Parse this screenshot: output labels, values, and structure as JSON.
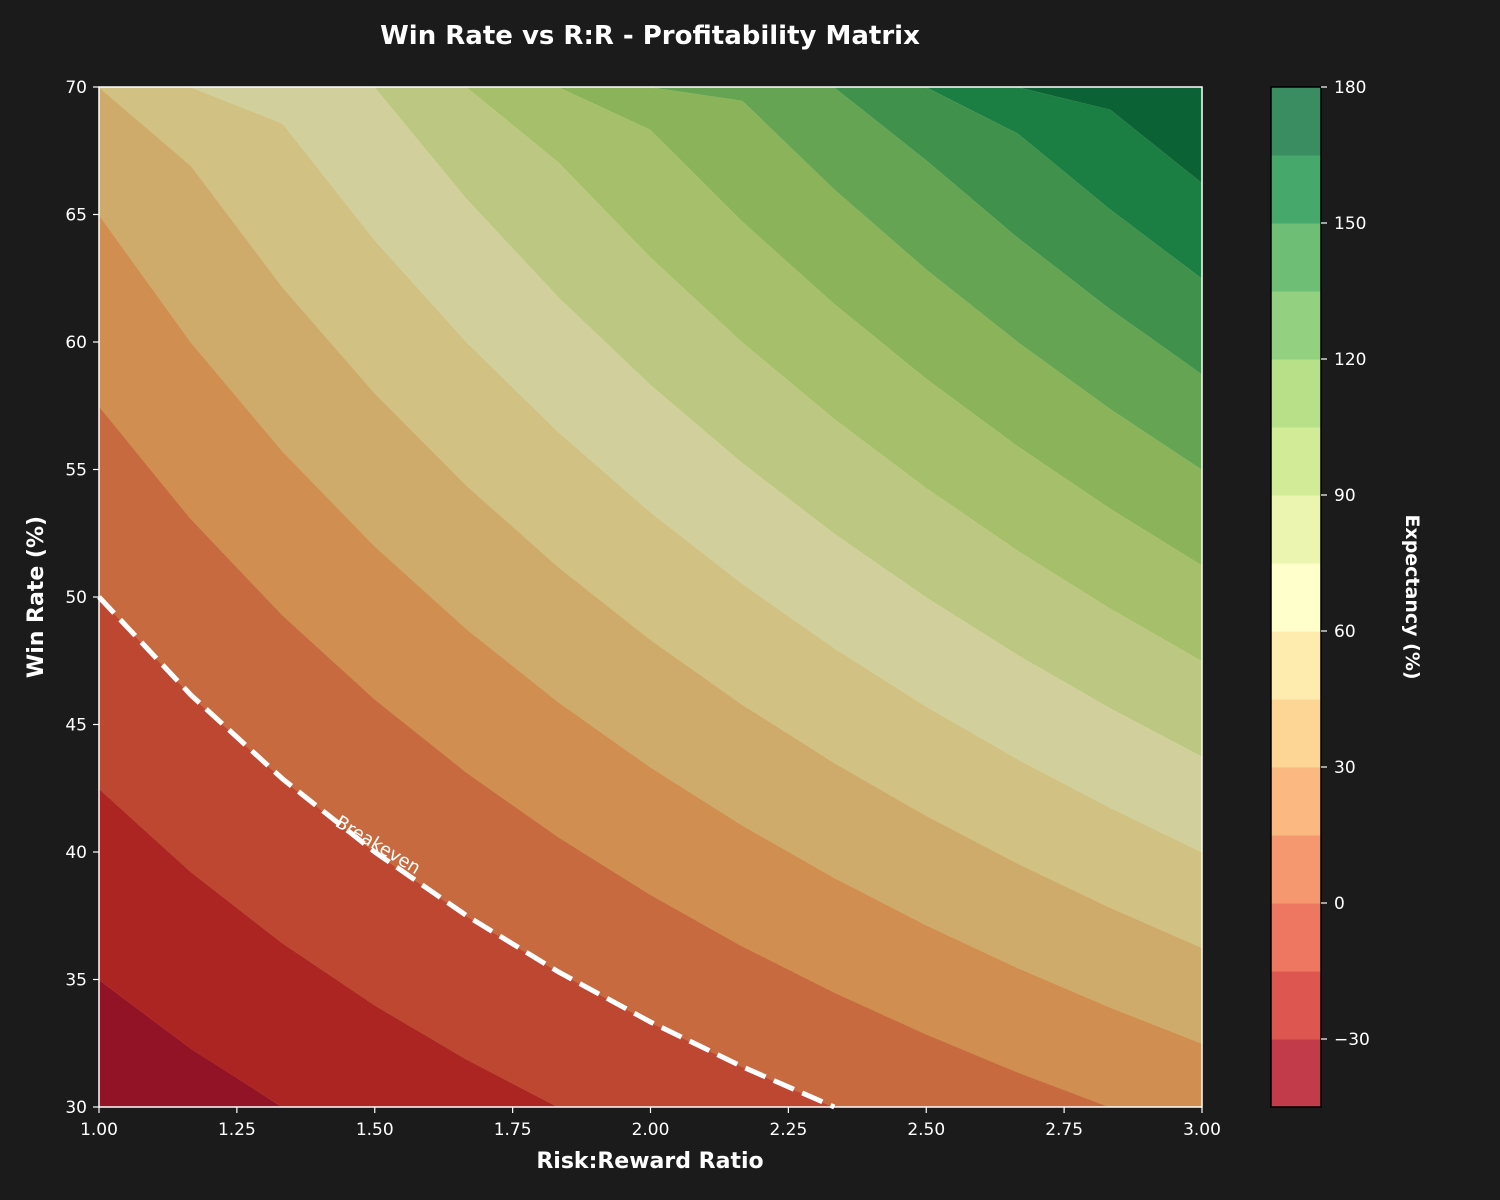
{
  "chart_data": {
    "type": "contour",
    "title": "Win Rate vs R:R - Profitability Matrix",
    "xlabel": "Risk:Reward Ratio",
    "ylabel": "Win Rate (%)",
    "xlim": [
      1.0,
      3.0
    ],
    "ylim": [
      30,
      70
    ],
    "xticks": [
      "1.00",
      "1.25",
      "1.50",
      "1.75",
      "2.00",
      "2.25",
      "2.50",
      "2.75",
      "3.00"
    ],
    "xtick_values": [
      1.0,
      1.25,
      1.5,
      1.75,
      2.0,
      2.25,
      2.5,
      2.75,
      3.0
    ],
    "yticks": [
      "30",
      "35",
      "40",
      "45",
      "50",
      "55",
      "60",
      "65",
      "70"
    ],
    "ytick_values": [
      30,
      35,
      40,
      45,
      50,
      55,
      60,
      65,
      70
    ],
    "x_grid": [
      1.0,
      1.1667,
      1.3333,
      1.5,
      1.6667,
      1.8333,
      2.0,
      2.1667,
      2.3333,
      2.5,
      2.6667,
      2.8333,
      3.0
    ],
    "z_formula": "Expectancy (%) = WinRate * RR - (100 - WinRate)",
    "levels": [
      -45,
      -30,
      -15,
      0,
      15,
      30,
      45,
      60,
      75,
      90,
      105,
      120,
      135,
      150,
      165,
      180
    ],
    "band_colors": [
      "#921226",
      "#ad2523",
      "#bd4731",
      "#c86a40",
      "#d08f50",
      "#cfab6b",
      "#d1c182",
      "#d1d09c",
      "#bcc882",
      "#a6bf6a",
      "#8bb35a",
      "#65a453",
      "#3f914c",
      "#1b7e43",
      "#0b6235"
    ],
    "colorbar_colors": [
      "#c13b4b",
      "#dd5650",
      "#ee7762",
      "#f5986f",
      "#fbb880",
      "#fdd595",
      "#feecaf",
      "#ffffcc",
      "#ebf5b0",
      "#d2eb97",
      "#b7e089",
      "#93d07f",
      "#6ebf75",
      "#46a96b",
      "#3a8d60"
    ],
    "colorbar": {
      "label": "Expectancy (%)",
      "range": [
        -45,
        180
      ],
      "ticks": [
        "−30",
        "0",
        "30",
        "60",
        "90",
        "120",
        "150",
        "180"
      ],
      "tick_values": [
        -30,
        0,
        30,
        60,
        90,
        120,
        150,
        180
      ]
    },
    "breakeven": {
      "label": "Breakeven",
      "formula": "WinRate = 100 / (1 + RR)",
      "color": "#ffffff",
      "style": "dashed"
    },
    "grid": false,
    "background": "#1b1b1b"
  }
}
